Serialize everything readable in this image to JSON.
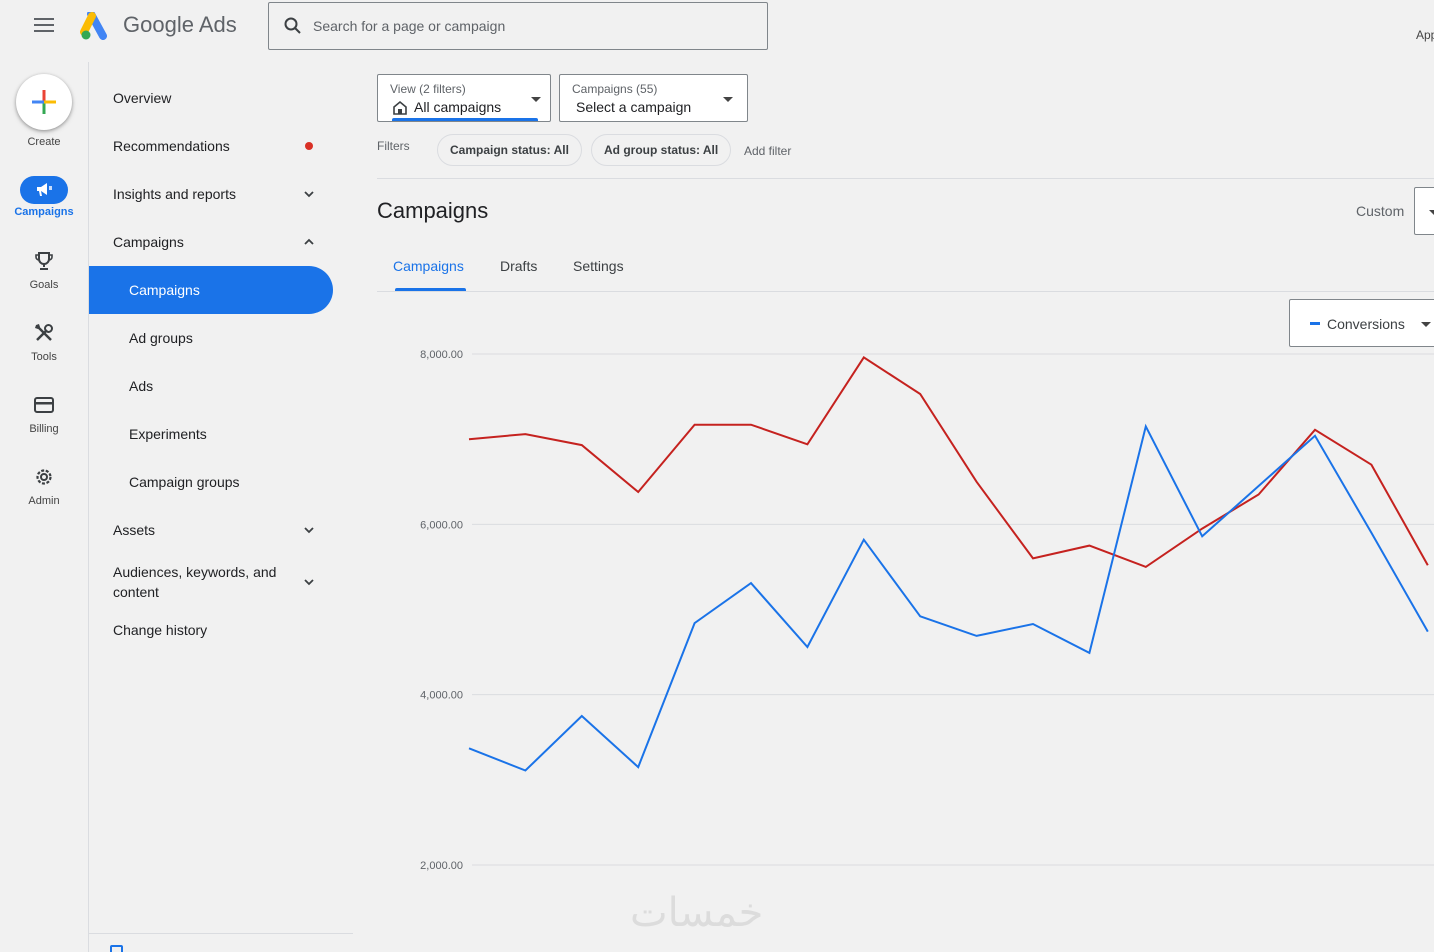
{
  "app": {
    "brand_google": "Google",
    "brand_ads": "Ads",
    "search_placeholder": "Search for a page or campaign",
    "top_right_label": "App"
  },
  "rail": {
    "create": "Create",
    "campaigns": "Campaigns",
    "goals": "Goals",
    "tools": "Tools",
    "billing": "Billing",
    "admin": "Admin"
  },
  "nav": {
    "overview": "Overview",
    "recommendations": "Recommendations",
    "insights": "Insights and reports",
    "campaigns_group": "Campaigns",
    "campaigns": "Campaigns",
    "ad_groups": "Ad groups",
    "ads": "Ads",
    "experiments": "Experiments",
    "campaign_groups": "Campaign groups",
    "assets": "Assets",
    "audiences": "Audiences, keywords, and content",
    "change_history": "Change history"
  },
  "view_dropdown": {
    "caption": "View (2 filters)",
    "value": "All campaigns"
  },
  "campaign_dropdown": {
    "caption": "Campaigns (55)",
    "value": "Select a campaign"
  },
  "filters": {
    "label": "Filters",
    "chips": [
      "Campaign status: All",
      "Ad group status: All"
    ],
    "add": "Add filter"
  },
  "main": {
    "title": "Campaigns",
    "date_label": "Custom",
    "tabs": [
      "Campaigns",
      "Drafts",
      "Settings"
    ],
    "metric_selector": "Conversions"
  },
  "colors": {
    "accent": "#1a73e8",
    "series_red": "#c5221f",
    "alert_dot": "#d93025"
  },
  "chart_data": {
    "type": "line",
    "title": "",
    "xlabel": "",
    "ylabel": "",
    "y_ticks": [
      "8,000.00",
      "6,000.00",
      "4,000.00",
      "2,000.00"
    ],
    "ylim": [
      1900,
      8200
    ],
    "x": [
      1,
      2,
      3,
      4,
      5,
      6,
      7,
      8,
      9,
      10,
      11,
      12,
      13,
      14,
      15,
      16,
      17,
      18
    ],
    "series": [
      {
        "color": "#c5221f",
        "values": [
          7000,
          7060,
          6930,
          6380,
          7170,
          7170,
          6940,
          7960,
          7530,
          6500,
          5600,
          5750,
          5500,
          5950,
          6350,
          7110,
          6700,
          5520
        ]
      },
      {
        "color": "#1a73e8",
        "values": [
          3370,
          3110,
          3750,
          3150,
          4840,
          5310,
          4560,
          5820,
          4920,
          4690,
          4830,
          4490,
          7150,
          5860,
          6450,
          7040,
          5900,
          4740
        ]
      }
    ]
  }
}
